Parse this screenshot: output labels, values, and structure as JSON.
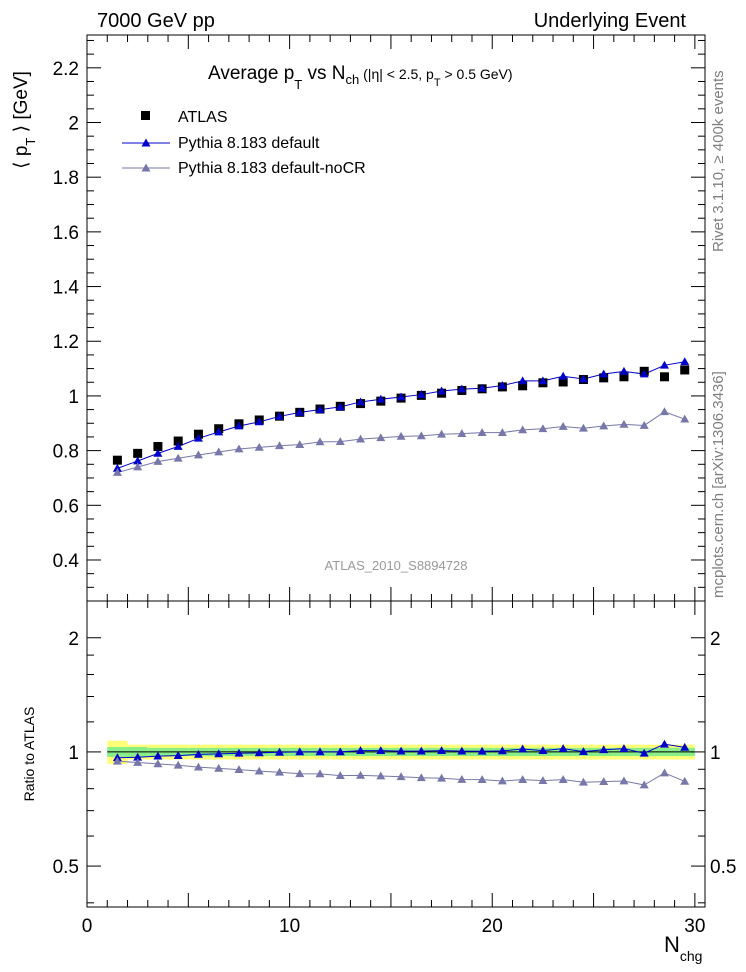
{
  "header": {
    "left_label": "7000 GeV pp",
    "right_label": "Underlying Event"
  },
  "side_labels": {
    "rivet": "Rivet 3.1.10, ≥ 400k events",
    "mcplots": "mcplots.cern.ch [arXiv:1306.3436]"
  },
  "chart_data": {
    "type": "scatter",
    "title": "Average p_T vs N_ch (|η| < 2.5, p_T > 0.5 GeV)",
    "title_parts": {
      "pre": "Average p",
      "sub1": "T",
      "mid": " vs N",
      "sub2": "ch",
      "tail_a": " (|η| < 2.5, p",
      "sub3": "T",
      "tail_b": " > 0.5 GeV)"
    },
    "analysis_id": "ATLAS_2010_S8894728",
    "xlabel": "N_chg",
    "xlabel_parts": {
      "main": "N",
      "sub": "chg"
    },
    "ylabel": "⟨ p_T ⟩ [GeV]",
    "ylabel_parts": {
      "pre": "⟨ p",
      "sub": "T",
      "post": " ⟩ [GeV]"
    },
    "ratio_ylabel": "Ratio to ATLAS",
    "xlim": [
      0,
      30.5
    ],
    "ylim": [
      0.25,
      2.32
    ],
    "ratio_ylim_log": [
      0.39,
      2.5
    ],
    "x_tick_labels": [
      "0",
      "10",
      "20",
      "30"
    ],
    "y_tick_labels": [
      "0.4",
      "0.6",
      "0.8",
      "1",
      "1.2",
      "1.4",
      "1.6",
      "1.8",
      "2",
      "2.2"
    ],
    "ratio_tick_labels": [
      "0.5",
      "1",
      "2"
    ],
    "x": [
      1.5,
      2.5,
      3.5,
      4.5,
      5.5,
      6.5,
      7.5,
      8.5,
      9.5,
      10.5,
      11.5,
      12.5,
      13.5,
      14.5,
      15.5,
      16.5,
      17.5,
      18.5,
      19.5,
      20.5,
      21.5,
      22.5,
      23.5,
      24.5,
      25.5,
      26.5,
      27.5,
      28.5,
      29.5
    ],
    "series": [
      {
        "name": "ATLAS",
        "marker": "square",
        "color": "#000000",
        "values": [
          0.765,
          0.79,
          0.815,
          0.835,
          0.86,
          0.88,
          0.898,
          0.912,
          0.926,
          0.94,
          0.952,
          0.962,
          0.972,
          0.981,
          0.992,
          1.002,
          1.01,
          1.02,
          1.026,
          1.033,
          1.037,
          1.048,
          1.051,
          1.06,
          1.066,
          1.07,
          1.09,
          1.07,
          1.095
        ]
      },
      {
        "name": "Pythia 8.183 default",
        "marker": "triangle",
        "color": "#0000cc",
        "values": [
          0.735,
          0.762,
          0.79,
          0.815,
          0.845,
          0.868,
          0.89,
          0.905,
          0.925,
          0.94,
          0.95,
          0.96,
          0.978,
          0.988,
          0.996,
          1.005,
          1.018,
          1.025,
          1.028,
          1.038,
          1.055,
          1.055,
          1.072,
          1.062,
          1.08,
          1.09,
          1.08,
          1.112,
          1.125
        ]
      },
      {
        "name": "Pythia 8.183 default-noCR",
        "marker": "triangle",
        "color": "#7777aa",
        "values": [
          0.72,
          0.74,
          0.76,
          0.772,
          0.784,
          0.795,
          0.806,
          0.812,
          0.818,
          0.822,
          0.832,
          0.833,
          0.842,
          0.847,
          0.852,
          0.854,
          0.86,
          0.862,
          0.866,
          0.866,
          0.876,
          0.88,
          0.888,
          0.882,
          0.89,
          0.896,
          0.892,
          0.942,
          0.915
        ]
      }
    ],
    "ratio_series": [
      {
        "name": "Pythia 8.183 default",
        "color": "#0000cc",
        "values": [
          0.965,
          0.968,
          0.975,
          0.978,
          0.985,
          0.988,
          0.992,
          0.994,
          0.998,
          1.0,
          1.0,
          1.0,
          1.008,
          1.008,
          1.005,
          1.005,
          1.008,
          1.005,
          1.004,
          1.006,
          1.018,
          1.008,
          1.02,
          1.002,
          1.013,
          1.02,
          0.992,
          1.048,
          1.028
        ]
      },
      {
        "name": "Pythia 8.183 default-noCR",
        "color": "#7777aa",
        "values": [
          0.945,
          0.938,
          0.93,
          0.922,
          0.912,
          0.905,
          0.898,
          0.89,
          0.884,
          0.876,
          0.875,
          0.866,
          0.867,
          0.864,
          0.86,
          0.855,
          0.852,
          0.846,
          0.845,
          0.838,
          0.845,
          0.84,
          0.845,
          0.832,
          0.835,
          0.838,
          0.818,
          0.88,
          0.836
        ]
      }
    ],
    "uncertainty_band": {
      "inner_color": "#88ee88",
      "outer_color": "#ffff77",
      "inner": [
        0.03,
        0.03,
        0.025,
        0.025,
        0.025,
        0.025,
        0.025,
        0.025,
        0.025,
        0.025,
        0.025,
        0.025,
        0.025,
        0.025,
        0.025,
        0.025,
        0.025,
        0.025,
        0.025,
        0.025,
        0.025,
        0.025,
        0.025,
        0.025,
        0.025,
        0.025,
        0.025,
        0.025,
        0.025
      ],
      "outer": [
        0.07,
        0.045,
        0.045,
        0.045,
        0.045,
        0.045,
        0.045,
        0.045,
        0.045,
        0.045,
        0.045,
        0.045,
        0.045,
        0.045,
        0.045,
        0.045,
        0.045,
        0.045,
        0.045,
        0.045,
        0.045,
        0.045,
        0.045,
        0.045,
        0.045,
        0.045,
        0.045,
        0.045,
        0.045
      ]
    },
    "legend": [
      "ATLAS",
      "Pythia 8.183 default",
      "Pythia 8.183 default-noCR"
    ],
    "legend_position": "top-left",
    "grid": false
  }
}
